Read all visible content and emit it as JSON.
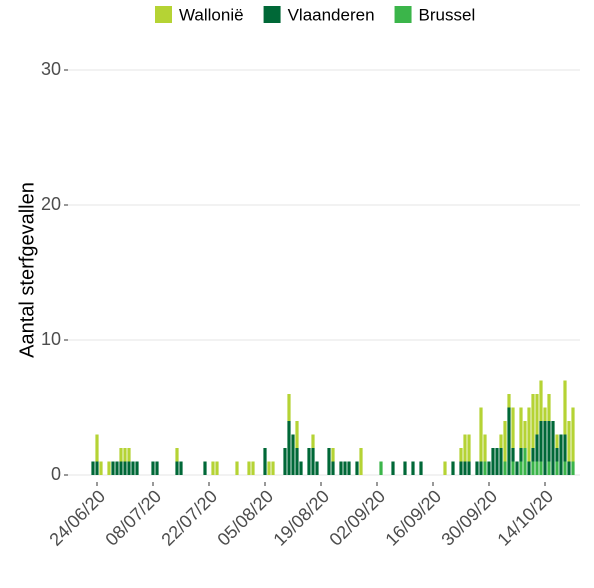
{
  "chart_data": {
    "type": "bar",
    "stacked": true,
    "y_label": "Aantal sterfgevallen",
    "categories": [
      null,
      null,
      "24/06/20",
      null,
      null,
      null,
      null,
      null,
      null,
      null,
      null,
      null,
      null,
      null,
      null,
      null,
      "08/07/20",
      null,
      null,
      null,
      null,
      null,
      null,
      null,
      null,
      null,
      null,
      null,
      null,
      null,
      "22/07/20",
      null,
      null,
      null,
      null,
      null,
      null,
      null,
      null,
      null,
      null,
      null,
      null,
      null,
      "05/08/20",
      null,
      null,
      null,
      null,
      null,
      null,
      null,
      null,
      null,
      null,
      null,
      null,
      null,
      "19/08/20",
      null,
      null,
      null,
      null,
      null,
      null,
      null,
      null,
      null,
      null,
      null,
      null,
      null,
      "02/09/20",
      null,
      null,
      null,
      null,
      null,
      null,
      null,
      null,
      null,
      null,
      null,
      null,
      null,
      "16/09/20",
      null,
      null,
      null,
      null,
      null,
      null,
      null,
      null,
      null,
      null,
      null,
      null,
      null,
      "30/09/20",
      null,
      null,
      null,
      null,
      null,
      null,
      null,
      null,
      null,
      null,
      null,
      null,
      null,
      "14/10/20",
      null,
      null,
      null,
      null,
      null,
      null,
      null,
      null
    ],
    "series": [
      {
        "name": "Wallonië",
        "color": "#b5d334",
        "values": [
          0,
          0,
          2,
          1,
          0,
          1,
          0,
          0,
          1,
          1,
          1,
          0,
          0,
          0,
          0,
          0,
          0,
          0,
          0,
          0,
          0,
          0,
          1,
          0,
          0,
          0,
          0,
          0,
          0,
          0,
          0,
          1,
          1,
          0,
          0,
          0,
          0,
          1,
          0,
          0,
          1,
          1,
          0,
          0,
          0,
          1,
          1,
          0,
          0,
          0,
          2,
          0,
          2,
          0,
          0,
          0,
          1,
          0,
          0,
          0,
          0,
          1,
          0,
          0,
          0,
          0,
          0,
          0,
          2,
          0,
          0,
          0,
          0,
          0,
          0,
          0,
          0,
          0,
          0,
          0,
          0,
          0,
          0,
          0,
          0,
          0,
          0,
          0,
          0,
          1,
          0,
          0,
          0,
          1,
          2,
          2,
          0,
          0,
          4,
          2,
          0,
          0,
          0,
          1,
          3,
          1,
          3,
          0,
          3,
          2,
          4,
          4,
          3,
          3,
          1,
          2,
          0,
          1,
          0,
          4,
          3,
          4,
          0
        ]
      },
      {
        "name": "Vlaanderen",
        "color": "#006837",
        "values": [
          0,
          1,
          1,
          0,
          0,
          0,
          1,
          1,
          1,
          1,
          1,
          1,
          1,
          0,
          0,
          0,
          1,
          1,
          0,
          0,
          0,
          0,
          1,
          1,
          0,
          0,
          0,
          0,
          0,
          1,
          0,
          0,
          0,
          0,
          0,
          0,
          0,
          0,
          0,
          0,
          0,
          0,
          0,
          0,
          2,
          0,
          0,
          0,
          0,
          2,
          4,
          3,
          2,
          1,
          0,
          2,
          2,
          1,
          0,
          0,
          2,
          1,
          0,
          1,
          1,
          1,
          0,
          1,
          0,
          0,
          0,
          0,
          0,
          0,
          0,
          0,
          1,
          0,
          0,
          1,
          0,
          1,
          0,
          1,
          0,
          0,
          0,
          0,
          0,
          0,
          0,
          1,
          0,
          1,
          1,
          1,
          0,
          1,
          1,
          0,
          1,
          2,
          2,
          2,
          0,
          5,
          1,
          1,
          1,
          0,
          1,
          1,
          2,
          3,
          4,
          3,
          4,
          1,
          3,
          2,
          1,
          0,
          0
        ]
      },
      {
        "name": "Brussel",
        "color": "#3bb54a",
        "values": [
          0,
          0,
          0,
          0,
          0,
          0,
          0,
          0,
          0,
          0,
          0,
          0,
          0,
          0,
          0,
          0,
          0,
          0,
          0,
          0,
          0,
          0,
          0,
          0,
          0,
          0,
          0,
          0,
          0,
          0,
          0,
          0,
          0,
          0,
          0,
          0,
          0,
          0,
          0,
          0,
          0,
          0,
          0,
          0,
          0,
          0,
          0,
          0,
          0,
          0,
          0,
          0,
          0,
          0,
          0,
          0,
          0,
          0,
          0,
          0,
          0,
          0,
          0,
          0,
          0,
          0,
          0,
          0,
          0,
          0,
          0,
          0,
          0,
          1,
          0,
          0,
          0,
          0,
          0,
          0,
          0,
          0,
          0,
          0,
          0,
          0,
          0,
          0,
          0,
          0,
          0,
          0,
          0,
          0,
          0,
          0,
          0,
          0,
          0,
          1,
          0,
          0,
          0,
          0,
          1,
          0,
          1,
          0,
          1,
          2,
          0,
          1,
          1,
          1,
          0,
          1,
          0,
          1,
          0,
          1,
          0,
          1,
          0
        ]
      }
    ],
    "ylim": [
      -0.5,
      30.5
    ],
    "yticks": [
      0,
      10,
      20,
      30
    ],
    "grid": true,
    "legend": "top"
  }
}
